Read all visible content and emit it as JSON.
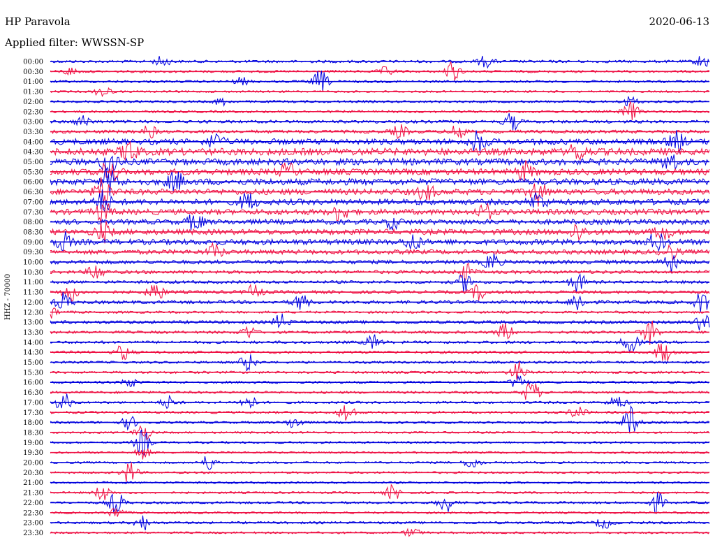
{
  "chart_data": {
    "type": "line",
    "title": "HP Paravola",
    "date": "2020-06-13",
    "filter_label": "Applied filter: WWSSN-SP",
    "ylabel": "HHZ - 70000",
    "xlabel": "",
    "trace_colors": [
      "#0000dd",
      "#ee1144"
    ],
    "grid": false,
    "legend": "none",
    "rows": [
      {
        "label": "00:00",
        "activity": 0.3,
        "events": [
          {
            "x": 0.17,
            "amp": 0.8
          },
          {
            "x": 0.66,
            "amp": 0.9
          },
          {
            "x": 0.99,
            "amp": 1.0
          }
        ]
      },
      {
        "label": "00:30",
        "activity": 0.25,
        "events": [
          {
            "x": 0.03,
            "amp": 0.6
          },
          {
            "x": 0.51,
            "amp": 0.7
          },
          {
            "x": 0.61,
            "amp": 1.6
          }
        ]
      },
      {
        "label": "01:00",
        "activity": 0.25,
        "events": [
          {
            "x": 0.29,
            "amp": 0.6
          },
          {
            "x": 0.41,
            "amp": 1.8
          }
        ]
      },
      {
        "label": "01:30",
        "activity": 0.2,
        "events": [
          {
            "x": 0.08,
            "amp": 1.0
          }
        ]
      },
      {
        "label": "02:00",
        "activity": 0.25,
        "events": [
          {
            "x": 0.26,
            "amp": 0.6
          },
          {
            "x": 0.88,
            "amp": 0.8
          }
        ]
      },
      {
        "label": "02:30",
        "activity": 0.25,
        "events": [
          {
            "x": 0.88,
            "amp": 1.6
          }
        ]
      },
      {
        "label": "03:00",
        "activity": 0.35,
        "events": [
          {
            "x": 0.05,
            "amp": 0.9
          },
          {
            "x": 0.7,
            "amp": 1.4
          }
        ]
      },
      {
        "label": "03:30",
        "activity": 0.4,
        "events": [
          {
            "x": 0.15,
            "amp": 1.0
          },
          {
            "x": 0.53,
            "amp": 1.0
          },
          {
            "x": 0.62,
            "amp": 1.5
          }
        ]
      },
      {
        "label": "04:00",
        "activity": 0.8,
        "events": [
          {
            "x": 0.25,
            "amp": 1.2
          },
          {
            "x": 0.65,
            "amp": 1.8
          },
          {
            "x": 0.95,
            "amp": 1.5
          }
        ]
      },
      {
        "label": "04:30",
        "activity": 1.0,
        "events": [
          {
            "x": 0.12,
            "amp": 1.8
          },
          {
            "x": 0.8,
            "amp": 1.5
          }
        ]
      },
      {
        "label": "05:00",
        "activity": 0.9,
        "events": [
          {
            "x": 0.09,
            "amp": 2.5
          },
          {
            "x": 0.94,
            "amp": 1.5
          }
        ]
      },
      {
        "label": "05:30",
        "activity": 0.85,
        "events": [
          {
            "x": 0.09,
            "amp": 2.0
          },
          {
            "x": 0.36,
            "amp": 1.2
          },
          {
            "x": 0.72,
            "amp": 1.4
          }
        ]
      },
      {
        "label": "06:00",
        "activity": 0.9,
        "events": [
          {
            "x": 0.09,
            "amp": 2.0
          },
          {
            "x": 0.19,
            "amp": 1.5
          }
        ]
      },
      {
        "label": "06:30",
        "activity": 0.8,
        "events": [
          {
            "x": 0.08,
            "amp": 2.5
          },
          {
            "x": 0.57,
            "amp": 1.4
          },
          {
            "x": 0.74,
            "amp": 2.0
          }
        ]
      },
      {
        "label": "07:00",
        "activity": 0.8,
        "events": [
          {
            "x": 0.08,
            "amp": 1.8
          },
          {
            "x": 0.3,
            "amp": 1.5
          },
          {
            "x": 0.74,
            "amp": 1.5
          }
        ]
      },
      {
        "label": "07:30",
        "activity": 0.75,
        "events": [
          {
            "x": 0.08,
            "amp": 1.6
          },
          {
            "x": 0.44,
            "amp": 1.4
          },
          {
            "x": 0.66,
            "amp": 1.2
          }
        ]
      },
      {
        "label": "08:00",
        "activity": 0.7,
        "events": [
          {
            "x": 0.22,
            "amp": 1.4
          },
          {
            "x": 0.52,
            "amp": 1.0
          }
        ]
      },
      {
        "label": "08:30",
        "activity": 0.75,
        "events": [
          {
            "x": 0.08,
            "amp": 1.6
          },
          {
            "x": 0.8,
            "amp": 1.4
          },
          {
            "x": 0.93,
            "amp": 1.4
          }
        ]
      },
      {
        "label": "09:00",
        "activity": 0.75,
        "events": [
          {
            "x": 0.02,
            "amp": 1.4
          },
          {
            "x": 0.55,
            "amp": 1.4
          },
          {
            "x": 0.92,
            "amp": 1.5
          }
        ]
      },
      {
        "label": "09:30",
        "activity": 0.6,
        "events": [
          {
            "x": 0.25,
            "amp": 1.2
          },
          {
            "x": 0.94,
            "amp": 1.2
          }
        ]
      },
      {
        "label": "10:00",
        "activity": 0.5,
        "events": [
          {
            "x": 0.67,
            "amp": 1.5
          },
          {
            "x": 0.94,
            "amp": 1.6
          }
        ]
      },
      {
        "label": "10:30",
        "activity": 0.4,
        "events": [
          {
            "x": 0.07,
            "amp": 1.4
          },
          {
            "x": 0.63,
            "amp": 1.4
          }
        ]
      },
      {
        "label": "11:00",
        "activity": 0.35,
        "events": [
          {
            "x": 0.63,
            "amp": 1.5
          },
          {
            "x": 0.8,
            "amp": 1.6
          }
        ]
      },
      {
        "label": "11:30",
        "activity": 0.4,
        "events": [
          {
            "x": 0.03,
            "amp": 1.4
          },
          {
            "x": 0.16,
            "amp": 1.6
          },
          {
            "x": 0.31,
            "amp": 1.2
          },
          {
            "x": 0.65,
            "amp": 1.2
          }
        ]
      },
      {
        "label": "12:00",
        "activity": 0.4,
        "events": [
          {
            "x": 0.02,
            "amp": 1.4
          },
          {
            "x": 0.38,
            "amp": 1.4
          },
          {
            "x": 0.8,
            "amp": 1.6
          },
          {
            "x": 0.99,
            "amp": 1.8
          }
        ]
      },
      {
        "label": "12:30",
        "activity": 0.25,
        "events": [
          {
            "x": 0.0,
            "amp": 1.0
          }
        ]
      },
      {
        "label": "13:00",
        "activity": 0.4,
        "events": [
          {
            "x": 0.35,
            "amp": 1.2
          },
          {
            "x": 0.99,
            "amp": 1.8
          }
        ]
      },
      {
        "label": "13:30",
        "activity": 0.3,
        "events": [
          {
            "x": 0.3,
            "amp": 1.0
          },
          {
            "x": 0.69,
            "amp": 1.4
          },
          {
            "x": 0.91,
            "amp": 2.0
          }
        ]
      },
      {
        "label": "14:00",
        "activity": 0.3,
        "events": [
          {
            "x": 0.49,
            "amp": 1.2
          },
          {
            "x": 0.88,
            "amp": 1.8
          }
        ]
      },
      {
        "label": "14:30",
        "activity": 0.3,
        "events": [
          {
            "x": 0.11,
            "amp": 1.2
          },
          {
            "x": 0.93,
            "amp": 1.8
          }
        ]
      },
      {
        "label": "15:00",
        "activity": 0.25,
        "events": [
          {
            "x": 0.3,
            "amp": 1.4
          }
        ]
      },
      {
        "label": "15:30",
        "activity": 0.25,
        "events": [
          {
            "x": 0.71,
            "amp": 1.6
          }
        ]
      },
      {
        "label": "16:00",
        "activity": 0.25,
        "events": [
          {
            "x": 0.12,
            "amp": 0.8
          },
          {
            "x": 0.71,
            "amp": 1.2
          }
        ]
      },
      {
        "label": "16:30",
        "activity": 0.25,
        "events": [
          {
            "x": 0.73,
            "amp": 2.0
          }
        ]
      },
      {
        "label": "17:00",
        "activity": 0.25,
        "events": [
          {
            "x": 0.02,
            "amp": 1.5
          },
          {
            "x": 0.18,
            "amp": 1.0
          },
          {
            "x": 0.3,
            "amp": 1.2
          },
          {
            "x": 0.86,
            "amp": 1.2
          }
        ]
      },
      {
        "label": "17:30",
        "activity": 0.25,
        "events": [
          {
            "x": 0.45,
            "amp": 1.6
          },
          {
            "x": 0.8,
            "amp": 1.2
          }
        ]
      },
      {
        "label": "18:00",
        "activity": 0.25,
        "events": [
          {
            "x": 0.12,
            "amp": 1.0
          },
          {
            "x": 0.37,
            "amp": 1.0
          },
          {
            "x": 0.88,
            "amp": 2.5
          }
        ]
      },
      {
        "label": "18:30",
        "activity": 0.2,
        "events": [
          {
            "x": 0.14,
            "amp": 1.5
          }
        ]
      },
      {
        "label": "19:00",
        "activity": 0.2,
        "events": [
          {
            "x": 0.14,
            "amp": 2.0
          }
        ]
      },
      {
        "label": "19:30",
        "activity": 0.2,
        "events": [
          {
            "x": 0.14,
            "amp": 1.0
          }
        ]
      },
      {
        "label": "20:00",
        "activity": 0.2,
        "events": [
          {
            "x": 0.24,
            "amp": 1.2
          },
          {
            "x": 0.64,
            "amp": 1.0
          }
        ]
      },
      {
        "label": "20:30",
        "activity": 0.2,
        "events": [
          {
            "x": 0.12,
            "amp": 1.8
          }
        ]
      },
      {
        "label": "21:00",
        "activity": 0.2,
        "events": []
      },
      {
        "label": "21:30",
        "activity": 0.2,
        "events": [
          {
            "x": 0.08,
            "amp": 1.4
          },
          {
            "x": 0.52,
            "amp": 1.2
          }
        ]
      },
      {
        "label": "22:00",
        "activity": 0.25,
        "events": [
          {
            "x": 0.1,
            "amp": 1.8
          },
          {
            "x": 0.6,
            "amp": 1.5
          },
          {
            "x": 0.92,
            "amp": 1.6
          }
        ]
      },
      {
        "label": "22:30",
        "activity": 0.2,
        "events": [
          {
            "x": 0.1,
            "amp": 0.9
          }
        ]
      },
      {
        "label": "23:00",
        "activity": 0.25,
        "events": [
          {
            "x": 0.14,
            "amp": 1.2
          },
          {
            "x": 0.84,
            "amp": 0.9
          }
        ]
      },
      {
        "label": "23:30",
        "activity": 0.2,
        "events": [
          {
            "x": 0.55,
            "amp": 0.8
          }
        ]
      }
    ]
  }
}
